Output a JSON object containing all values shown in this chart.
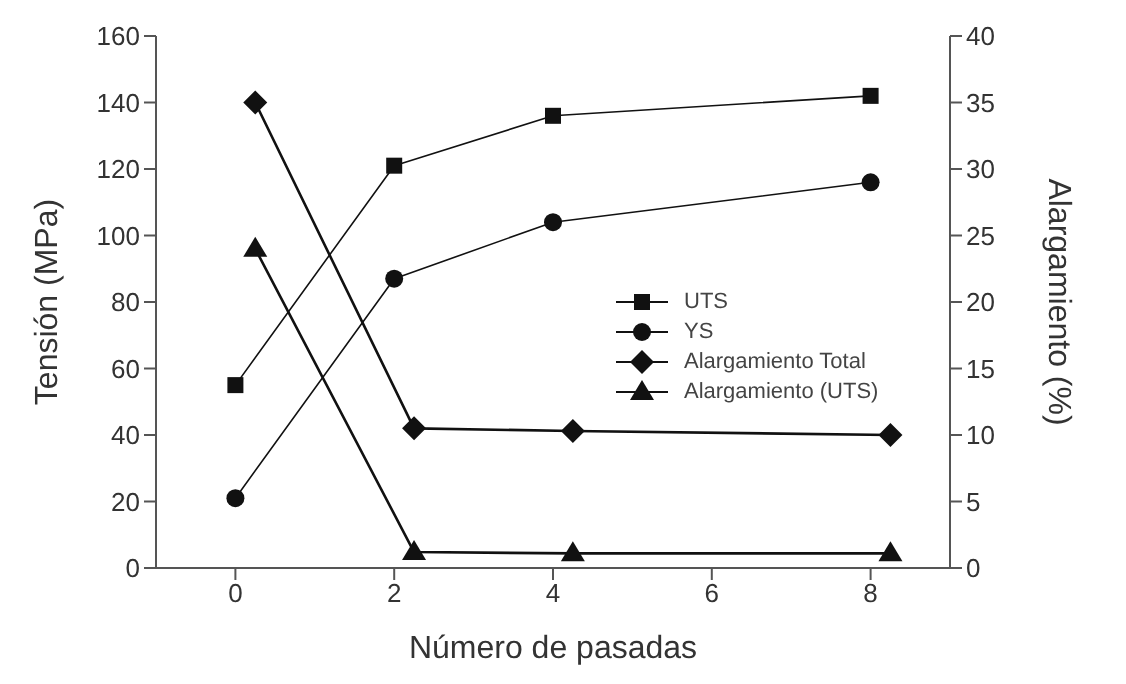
{
  "chart_data": {
    "type": "line",
    "xlabel": "Número de pasadas",
    "ylabel": "Tensión (MPa)",
    "y2label": "Alargamiento (%)",
    "xlim": [
      -1,
      9
    ],
    "xticks": [
      0,
      2,
      4,
      6,
      8
    ],
    "ylim": [
      0,
      160
    ],
    "yticks": [
      0,
      20,
      40,
      60,
      80,
      100,
      120,
      140,
      160
    ],
    "y2lim": [
      0,
      40
    ],
    "y2ticks": [
      0,
      5,
      10,
      15,
      20,
      25,
      30,
      35,
      40
    ],
    "legend": "right",
    "line_style": "solid",
    "series": [
      {
        "name": "UTS",
        "color": "#111111",
        "marker": "square",
        "x": [
          0,
          2,
          4,
          8
        ],
        "values": [
          55,
          121,
          136,
          142
        ]
      },
      {
        "name": "YS",
        "color": "#111111",
        "marker": "circle",
        "x": [
          0,
          2,
          4,
          8
        ],
        "values": [
          21,
          87,
          104,
          116
        ]
      },
      {
        "name": "Alargamiento Total",
        "color": "#111111",
        "marker": "diamond",
        "axis": "y2",
        "x": [
          0.25,
          2.25,
          4.25,
          8.25
        ],
        "values": [
          35,
          10.5,
          10.3,
          10
        ]
      },
      {
        "name": "Alargamiento (UTS)",
        "color": "#111111",
        "marker": "triangle",
        "axis": "y2",
        "x": [
          0.25,
          2.25,
          4.25,
          8.25
        ],
        "values": [
          24,
          1.2,
          1.1,
          1.1
        ]
      }
    ]
  }
}
